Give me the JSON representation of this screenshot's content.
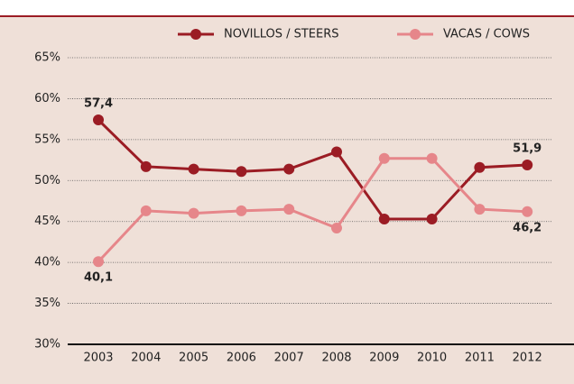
{
  "chart_data": {
    "type": "line",
    "categories": [
      "2003",
      "2004",
      "2005",
      "2006",
      "2007",
      "2008",
      "2009",
      "2010",
      "2011",
      "2012"
    ],
    "series": [
      {
        "name": "NOVILLOS / STEERS",
        "color": "#9b1c24",
        "values": [
          57.4,
          51.7,
          51.4,
          51.1,
          51.4,
          53.5,
          45.3,
          45.3,
          51.6,
          51.9
        ],
        "value_labels": [
          "57,4",
          null,
          null,
          null,
          null,
          null,
          null,
          null,
          null,
          "51,9"
        ]
      },
      {
        "name": "VACAS / COWS",
        "color": "#e6868a",
        "values": [
          40.1,
          46.3,
          46.0,
          46.3,
          46.5,
          44.2,
          52.7,
          52.7,
          46.5,
          46.2
        ],
        "value_labels": [
          "40,1",
          null,
          null,
          null,
          null,
          null,
          null,
          null,
          null,
          "46,2"
        ]
      }
    ],
    "ylim": [
      30,
      65
    ],
    "yticks": [
      {
        "value": 30,
        "label": "30%"
      },
      {
        "value": 35,
        "label": "35%"
      },
      {
        "value": 40,
        "label": "40%"
      },
      {
        "value": 45,
        "label": "45%"
      },
      {
        "value": 50,
        "label": "50%"
      },
      {
        "value": 55,
        "label": "55%"
      },
      {
        "value": 60,
        "label": "60%"
      },
      {
        "value": 65,
        "label": "65%"
      }
    ],
    "grid": true,
    "legend": "top"
  }
}
